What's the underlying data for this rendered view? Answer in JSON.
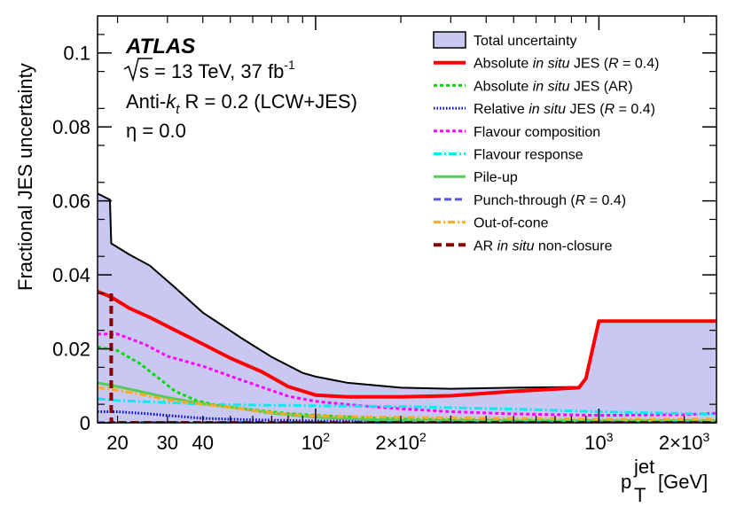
{
  "chart_data": {
    "type": "line",
    "xscale": "log",
    "xlim": [
      17,
      2600
    ],
    "ylim": [
      0,
      0.11
    ],
    "ylabel": "Fractional JES uncertainty",
    "xlabel": {
      "main": "p",
      "sup": "jet",
      "sub": "T",
      "unit": "[GeV]"
    },
    "yticks": [
      {
        "v": 0,
        "label": "0"
      },
      {
        "v": 0.02,
        "label": "0.02"
      },
      {
        "v": 0.04,
        "label": "0.04"
      },
      {
        "v": 0.06,
        "label": "0.06"
      },
      {
        "v": 0.08,
        "label": "0.08"
      },
      {
        "v": 0.1,
        "label": "0.1"
      }
    ],
    "xticks": [
      {
        "v": 20,
        "label": "20"
      },
      {
        "v": 30,
        "label": "30"
      },
      {
        "v": 40,
        "label": "40"
      },
      {
        "v": 100,
        "base": "10",
        "exp": "2",
        "label": "10^2"
      },
      {
        "v": 200,
        "base": "2×10",
        "exp": "2",
        "label": "2×10^2"
      },
      {
        "v": 1000,
        "base": "10",
        "exp": "3",
        "label": "10^3"
      },
      {
        "v": 2000,
        "base": "2×10",
        "exp": "3",
        "label": "2×10^3"
      }
    ],
    "info": {
      "atlas": "ATLAS",
      "energy_prefix": "s",
      "energy_text": " = 13 TeV, 37 fb",
      "lumi_sup": "-1",
      "algo_a": "Anti-",
      "algo_k": "k",
      "algo_t": "t",
      "algo_b": " R = 0.2 (LCW+JES)",
      "eta": "η = 0.0"
    },
    "series": [
      {
        "name": "Total uncertainty",
        "kind": "fill",
        "color": "#c8c8f2",
        "edge": "#000000",
        "x": [
          17,
          18.8,
          19,
          22,
          26,
          32,
          40,
          55,
          70,
          90,
          100,
          130,
          200,
          300,
          500,
          850,
          900,
          950,
          1000,
          2600
        ],
        "y": [
          0.062,
          0.0603,
          0.0485,
          0.0455,
          0.0425,
          0.0365,
          0.0298,
          0.0228,
          0.0178,
          0.0135,
          0.0125,
          0.0108,
          0.0095,
          0.0092,
          0.0095,
          0.0097,
          0.012,
          0.02,
          0.0275,
          0.0275
        ]
      },
      {
        "name": "Absolute in situ JES (R = 0.4)",
        "color": "#ff0000",
        "dash": "",
        "width": 4,
        "x": [
          17,
          19,
          22,
          26,
          32,
          40,
          50,
          65,
          80,
          100,
          130,
          200,
          300,
          500,
          850,
          900,
          950,
          1000,
          2600
        ],
        "y": [
          0.0355,
          0.034,
          0.031,
          0.0285,
          0.025,
          0.0213,
          0.0175,
          0.0137,
          0.0098,
          0.0075,
          0.007,
          0.007,
          0.0073,
          0.0085,
          0.0095,
          0.012,
          0.02,
          0.0275,
          0.0275
        ]
      },
      {
        "name": "Absolute in situ JES (AR)",
        "color": "#00dd00",
        "dash": "4,3",
        "width": 3,
        "x": [
          17,
          20,
          24,
          28,
          32,
          38,
          45,
          60,
          80,
          100,
          200,
          500,
          1000,
          2600
        ],
        "y": [
          0.0205,
          0.0195,
          0.016,
          0.012,
          0.0085,
          0.006,
          0.0047,
          0.0035,
          0.0025,
          0.002,
          0.001,
          0.0007,
          0.0006,
          0.0006
        ]
      },
      {
        "name": "Relative in situ JES (R = 0.4)",
        "color": "#0000cc",
        "dash": "1.5,2",
        "width": 3,
        "x": [
          17,
          20,
          25,
          30,
          40,
          60,
          100,
          200,
          500,
          1000,
          2600
        ],
        "y": [
          0.003,
          0.003,
          0.0025,
          0.002,
          0.0012,
          0.0008,
          0.0005,
          0.0004,
          0.0004,
          0.0004,
          0.0004
        ]
      },
      {
        "name": "Flavour composition",
        "color": "#ff00ff",
        "dash": "4,3",
        "width": 3,
        "x": [
          17,
          20,
          25,
          30,
          40,
          55,
          80,
          100,
          150,
          200,
          300,
          500,
          1000,
          2000,
          2600
        ],
        "y": [
          0.024,
          0.024,
          0.0212,
          0.018,
          0.0153,
          0.0115,
          0.0072,
          0.0058,
          0.0045,
          0.0038,
          0.003,
          0.0024,
          0.002,
          0.0022,
          0.0026
        ]
      },
      {
        "name": "Flavour response",
        "color": "#00eeee",
        "dash": "9,3,2,3",
        "width": 3,
        "x": [
          17,
          20,
          25,
          30,
          40,
          60,
          100,
          200,
          300,
          500,
          1000,
          2000,
          2600
        ],
        "y": [
          0.0065,
          0.006,
          0.0057,
          0.0055,
          0.005,
          0.0048,
          0.0046,
          0.0044,
          0.0041,
          0.0037,
          0.003,
          0.0025,
          0.0023
        ]
      },
      {
        "name": "Pile-up",
        "color": "#55cc55",
        "dash": "",
        "width": 3,
        "x": [
          17,
          20,
          25,
          30,
          40,
          55,
          70,
          100,
          150,
          200,
          300,
          500,
          1000,
          2600
        ],
        "y": [
          0.0108,
          0.0098,
          0.0082,
          0.0068,
          0.0052,
          0.0038,
          0.0026,
          0.0015,
          0.0009,
          0.0007,
          0.0006,
          0.0005,
          0.0005,
          0.0005
        ]
      },
      {
        "name": "Punch-through (R = 0.4)",
        "color": "#5555dd",
        "dash": "8,4",
        "width": 3,
        "x": [
          17,
          2600
        ],
        "y": [
          0.0001,
          0.0001
        ]
      },
      {
        "name": "Out-of-cone",
        "color": "#ffaa22",
        "dash": "8,3,2,3",
        "width": 3,
        "x": [
          17,
          20,
          25,
          30,
          40,
          50,
          60,
          80,
          100,
          200,
          500,
          1000,
          2600
        ],
        "y": [
          0.0095,
          0.0088,
          0.0075,
          0.0062,
          0.005,
          0.0042,
          0.0033,
          0.0023,
          0.0018,
          0.0015,
          0.0012,
          0.001,
          0.001
        ]
      },
      {
        "name": "AR in situ non-closure",
        "color": "#8b0000",
        "dash": "9,5",
        "width": 4,
        "x": [
          19,
          19,
          19.05,
          2600
        ],
        "y": [
          0.035,
          0.002,
          0.0,
          0.0
        ]
      }
    ],
    "legend": [
      {
        "parts": [
          {
            "t": "Total uncertainty"
          }
        ]
      },
      {
        "parts": [
          {
            "t": "Absolute "
          },
          {
            "t": "in situ",
            "i": true
          },
          {
            "t": " JES ("
          },
          {
            "t": "R",
            "i": true
          },
          {
            "t": " = 0.4)"
          }
        ]
      },
      {
        "parts": [
          {
            "t": "Absolute "
          },
          {
            "t": "in situ",
            "i": true
          },
          {
            "t": " JES (AR)"
          }
        ]
      },
      {
        "parts": [
          {
            "t": "Relative "
          },
          {
            "t": "in situ",
            "i": true
          },
          {
            "t": " JES ("
          },
          {
            "t": "R",
            "i": true
          },
          {
            "t": " = 0.4)"
          }
        ]
      },
      {
        "parts": [
          {
            "t": "Flavour composition"
          }
        ]
      },
      {
        "parts": [
          {
            "t": "Flavour response"
          }
        ]
      },
      {
        "parts": [
          {
            "t": "Pile-up"
          }
        ]
      },
      {
        "parts": [
          {
            "t": "Punch-through ("
          },
          {
            "t": "R",
            "i": true
          },
          {
            "t": " = 0.4)"
          }
        ]
      },
      {
        "parts": [
          {
            "t": "Out-of-cone"
          }
        ]
      },
      {
        "parts": [
          {
            "t": "AR "
          },
          {
            "t": "in situ",
            "i": true
          },
          {
            "t": " non-closure"
          }
        ]
      }
    ]
  }
}
